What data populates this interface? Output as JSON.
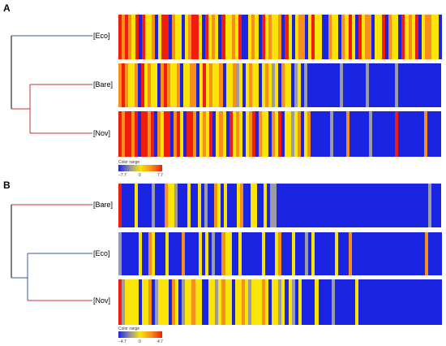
{
  "panels": [
    {
      "label": "A",
      "rows": [
        {
          "label": "[Eco]",
          "pattern": "ROROYRBRYYOBYRRBOYYBYORRYBRYOYBRYYOYRBBYOYBRYOYYOBRYBYOOBYRYYBBOYYBOYRYBRYOOBYYRBOYYBRYOYRBYOOYYB"
        },
        {
          "label": "[Bare]",
          "pattern": "OROYYOBRYOYYBOROYYOBYYOOBYRYOYYOBYYOGYBYOYYBYOYGYBOYYBGYBGBBBBBBBBBBGBBBBBBBGBBBBBBBBGBBBBBBBBBBBBB"
        },
        {
          "label": "[Nov]",
          "pattern": "RORRORBRRORBOYRRBORYBRROBYOYRBYOYBRYOYBYORBOYYBOYRBYYGYOBYOBBBBBBGBBBBOBBBBBBGBBBBBBBRBBBBBBBBOBBBB"
        }
      ],
      "legend": {
        "title": "Color range",
        "min": "−7.7",
        "mid": "0",
        "max": "7.7"
      }
    },
    {
      "label": "B",
      "rows": [
        {
          "label": "[Bare]",
          "pattern": "RBBBBYBBBBGBBBOYYGBBBYBBYBGBBOYBYBBBYOBBYYBBYBGGBBBBBBBBBBBBBBBBBBBBBBBBBBBBBBBBBBBBBBBBBBBBBBGBBB"
        },
        {
          "label": "[Eco]",
          "pattern": "GBBBBBYBBOYBBBYBBBBOBBBBYBYBGBBOYYBBYBBBBBBYBBBYOBBBYBBBGBYBBBBBBYBBBOBBBBBBBBBBBBBBBBBBBBBBOBBBB"
        },
        {
          "label": "[Nov]",
          "pattern": "RGYYYYBYYOBGYYYBOYBGYYOYYBBYYGYOYYBYYOYGYYYOYBYYGYBYGBYBBBBYBBBBGBBBBBBYBBBBBBBBBBBBBBBBBBBBBBBBB"
        }
      ],
      "legend": {
        "title": "Color range",
        "min": "−4.7",
        "mid": "0",
        "max": "4.7"
      }
    }
  ],
  "palette": {
    "R": "#f01d0c",
    "O": "#f7901a",
    "Y": "#fbe40a",
    "B": "#1b24e0",
    "G": "#9b9ba5"
  },
  "legend_gradient": [
    "#1b24e0",
    "#8e8ea0",
    "#fbe40a",
    "#f7901a",
    "#f01d0c"
  ],
  "tree_colors": {
    "blue": "#3a56a8",
    "red": "#c8323a",
    "black": "#000000"
  }
}
